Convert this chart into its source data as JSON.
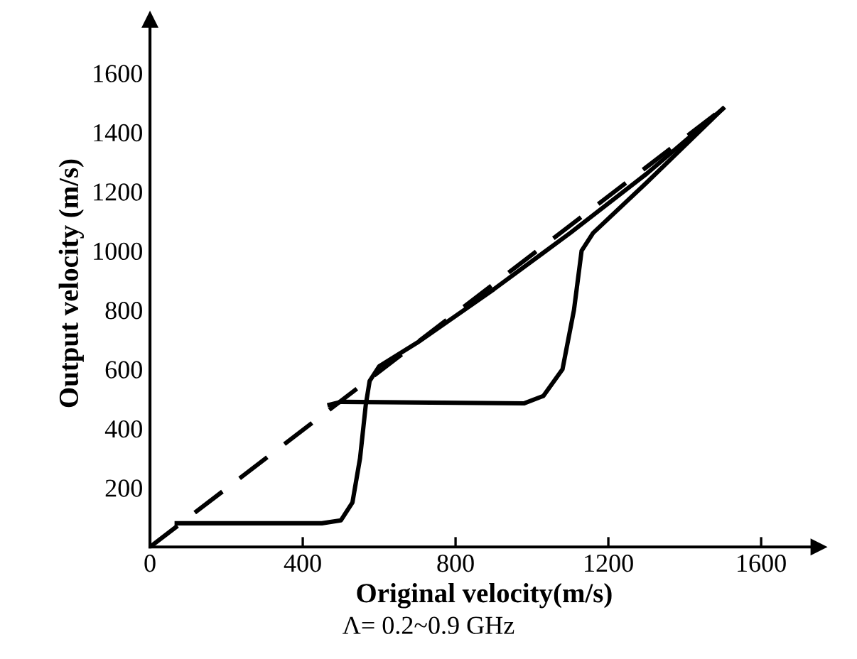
{
  "chart_data": {
    "type": "line",
    "xlabel": "Original velocity(m/s)",
    "ylabel": "Output velocity (m/s)",
    "annotations": [
      "Λ= 0.2~0.9 GHz"
    ],
    "series": [
      {
        "color": "#000000",
        "line_style": "dashed",
        "x": [
          0,
          1500
        ],
        "values": [
          0,
          1480
        ]
      },
      {
        "color": "#000000",
        "line_style": "solid",
        "x": [
          70,
          450,
          500,
          530,
          550,
          565,
          575,
          600,
          700,
          900,
          1100,
          1300,
          1500
        ],
        "values": [
          80,
          80,
          90,
          150,
          300,
          480,
          560,
          610,
          690,
          870,
          1060,
          1260,
          1480
        ]
      },
      {
        "color": "#000000",
        "line_style": "solid",
        "x": [
          470,
          500,
          980,
          1030,
          1080,
          1110,
          1130,
          1160,
          1300,
          1500
        ],
        "values": [
          480,
          490,
          485,
          510,
          600,
          800,
          1000,
          1060,
          1230,
          1480
        ]
      }
    ],
    "xlim": [
      0,
      1750
    ],
    "ylim": [
      0,
      1780
    ],
    "xticks": [
      0,
      400,
      800,
      1200,
      1600
    ],
    "yticks": [
      200,
      400,
      600,
      800,
      1000,
      1200,
      1400,
      1600
    ],
    "grid": false,
    "legend": false,
    "marker": "none"
  }
}
